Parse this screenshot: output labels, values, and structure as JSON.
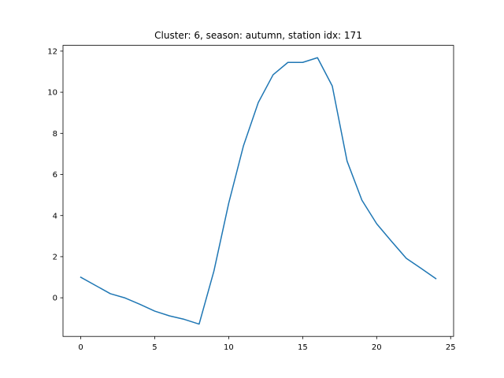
{
  "chart_data": {
    "type": "line",
    "title": "Cluster: 6, season: autumn, station idx: 171",
    "xlabel": "",
    "ylabel": "",
    "xlim": [
      -1.2,
      25.2
    ],
    "ylim": [
      -1.88,
      12.28
    ],
    "xticks": [
      0,
      5,
      10,
      15,
      20,
      25
    ],
    "yticks": [
      0,
      2,
      4,
      6,
      8,
      10,
      12
    ],
    "grid": false,
    "legend": "none",
    "series": [
      {
        "color": "#1f77b4",
        "x": [
          0,
          1,
          2,
          3,
          4,
          5,
          6,
          7,
          8,
          9,
          10,
          11,
          12,
          13,
          14,
          15,
          16,
          17,
          18,
          19,
          20,
          21,
          22,
          23,
          24
        ],
        "y": [
          1.0,
          0.6,
          0.2,
          -0.01,
          -0.32,
          -0.65,
          -0.88,
          -1.05,
          -1.28,
          1.3,
          4.6,
          7.4,
          9.5,
          10.85,
          11.45,
          11.45,
          11.68,
          10.3,
          6.65,
          4.75,
          3.6,
          2.75,
          1.92,
          1.43,
          0.93
        ]
      }
    ]
  }
}
